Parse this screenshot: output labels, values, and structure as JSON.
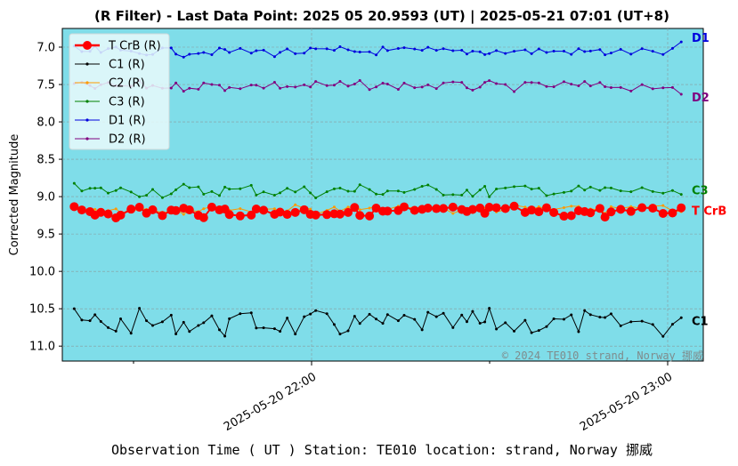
{
  "chart_data": {
    "type": "line",
    "title": "(R Filter) - Last Data Point: 2025 05 20.9593 (UT) | 2025-05-21 07:01 (UT+8)",
    "xlabel": "Observation Time ( UT )  Station: TE010 location: strand,  Norway 挪威",
    "ylabel": "Corrected Magnitude",
    "y_inverted": true,
    "ylim": [
      11.2,
      6.75
    ],
    "xlim": [
      "2025-05-20 21:18",
      "2025-05-20 23:06"
    ],
    "yticks": [
      "7.0",
      "7.5",
      "8.0",
      "8.5",
      "9.0",
      "9.5",
      "10.0",
      "10.5",
      "11.0"
    ],
    "xticks": [
      "2025-05-20 22:00",
      "2025-05-20 23:00"
    ],
    "grid": true,
    "legend_position": "top-left",
    "background_color": "#7fdde9",
    "copyright": "© 2024 TE010 strand,  Norway 挪威",
    "series": [
      {
        "name": "T CrB (R)",
        "label": "T CrB",
        "color": "#ff0000",
        "marker": "large-circle",
        "magnitude": 9.2,
        "spread": 0.12
      },
      {
        "name": "C1 (R)",
        "label": "C1",
        "color": "#000000",
        "marker": "dot",
        "magnitude": 10.7,
        "spread": 0.28
      },
      {
        "name": "C2 (R)",
        "label": "",
        "color": "#ff9900",
        "marker": "dot",
        "magnitude": 9.17,
        "spread": 0.09
      },
      {
        "name": "C3 (R)",
        "label": "C3",
        "color": "#008000",
        "marker": "dot",
        "magnitude": 8.92,
        "spread": 0.14
      },
      {
        "name": "D1 (R)",
        "label": "D1",
        "color": "#0000dd",
        "marker": "dot",
        "magnitude": 7.06,
        "spread": 0.1
      },
      {
        "name": "D2 (R)",
        "label": "D2",
        "color": "#800080",
        "marker": "dot",
        "magnitude": 7.52,
        "spread": 0.1
      }
    ],
    "last_values": {
      "T CrB": 9.15,
      "C1": 10.62,
      "C3": 8.97,
      "D1": 6.93,
      "D2": 7.63
    }
  }
}
